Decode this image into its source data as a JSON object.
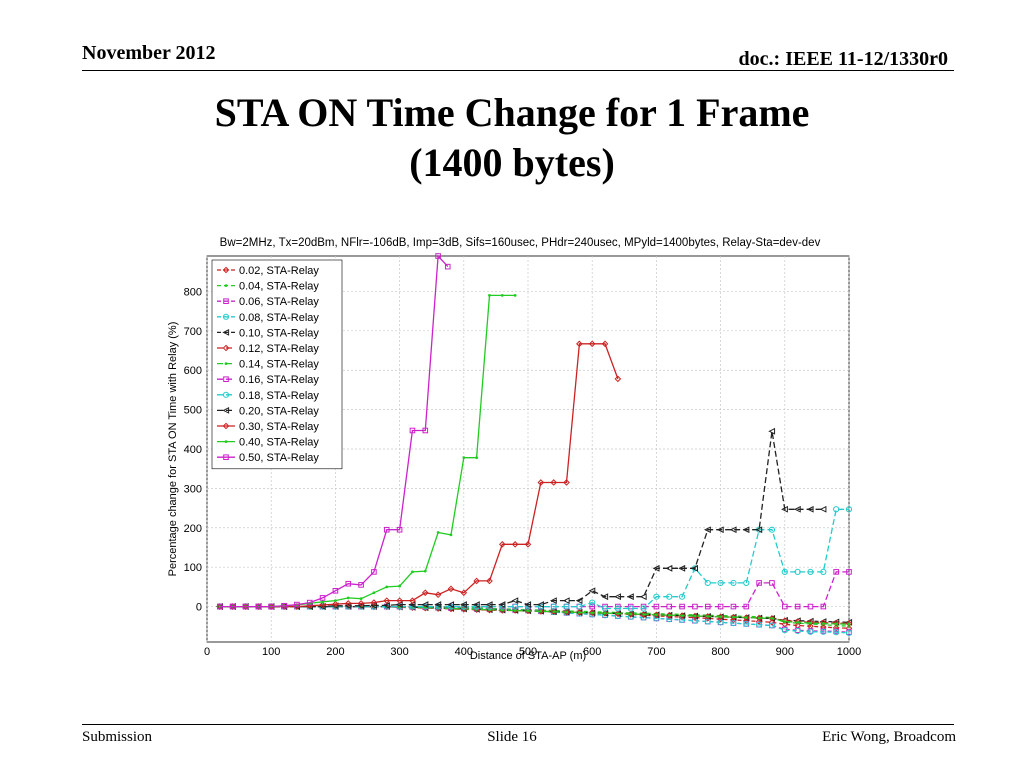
{
  "slide": {
    "date": "November 2012",
    "doc_id": "doc.: IEEE 11-12/1330r0",
    "title_line1": "STA ON Time Change for 1 Frame",
    "title_line2": "(1400 bytes)",
    "footer_left": "Submission",
    "footer_center": "Slide 16",
    "footer_right": "Eric Wong, Broadcom"
  },
  "chart_data": {
    "type": "line",
    "title": "Bw=2MHz, Tx=20dBm, NFlr=-106dB, Imp=3dB, Sifs=160usec, PHdr=240usec, MPyld=1400bytes, Relay-Sta=dev-dev",
    "xlabel": "Distance of STA-AP (m)",
    "ylabel": "Percentage change for STA ON Time with Relay (%)",
    "xlim": [
      0,
      1000
    ],
    "ylim": [
      -90,
      890
    ],
    "xticks": [
      0,
      100,
      200,
      300,
      400,
      500,
      600,
      700,
      800,
      900,
      1000
    ],
    "yticks": [
      0,
      100,
      200,
      300,
      400,
      500,
      600,
      700,
      800
    ],
    "grid": true,
    "legend_position": "top-left",
    "series": [
      {
        "name": "0.02, STA-Relay",
        "color": "#cc2222",
        "marker": "diamond",
        "dash": "4,3",
        "x": [
          20,
          40,
          60,
          80,
          100,
          120,
          140,
          160,
          180,
          200,
          220,
          240,
          260,
          280,
          300,
          320,
          340,
          360,
          380,
          400,
          420,
          440,
          460,
          480,
          500,
          520,
          540,
          560,
          580,
          600,
          620,
          640,
          660,
          680,
          700,
          720,
          740,
          760,
          780,
          800,
          820,
          840,
          860,
          880,
          900,
          920,
          940,
          960,
          980,
          1000
        ],
        "y": [
          0,
          0,
          0,
          0,
          0,
          0,
          0,
          0,
          0,
          0,
          0,
          0,
          0,
          0,
          0,
          0,
          0,
          0,
          -2,
          -3,
          -4,
          -5,
          -6,
          -8,
          -10,
          -11,
          -12,
          -13,
          -14,
          -15,
          -17,
          -18,
          -20,
          -22,
          -24,
          -25,
          -27,
          -28,
          -30,
          -32,
          -34,
          -36,
          -38,
          -40,
          -45,
          -48,
          -50,
          -52,
          -54,
          -55
        ]
      },
      {
        "name": "0.04, STA-Relay",
        "color": "#22cc22",
        "marker": "point",
        "dash": "4,3",
        "x": [
          20,
          40,
          60,
          80,
          100,
          120,
          140,
          160,
          180,
          200,
          220,
          240,
          260,
          280,
          300,
          320,
          340,
          360,
          380,
          400,
          420,
          440,
          460,
          480,
          500,
          520,
          540,
          560,
          580,
          600,
          620,
          640,
          660,
          680,
          700,
          720,
          740,
          760,
          780,
          800,
          820,
          840,
          860,
          880,
          900,
          920,
          940,
          960,
          980,
          1000
        ],
        "y": [
          0,
          0,
          0,
          0,
          0,
          0,
          0,
          0,
          0,
          0,
          0,
          0,
          0,
          0,
          0,
          0,
          0,
          -1,
          -2,
          -3,
          -4,
          -5,
          -6,
          -7,
          -8,
          -9,
          -10,
          -11,
          -12,
          -13,
          -14,
          -15,
          -16,
          -17,
          -18,
          -19,
          -20,
          -21,
          -22,
          -23,
          -24,
          -25,
          -26,
          -28,
          -40,
          -42,
          -44,
          -46,
          -48,
          -50
        ]
      },
      {
        "name": "0.06, STA-Relay",
        "color": "#cc22cc",
        "marker": "square",
        "dash": "4,3",
        "x": [
          20,
          40,
          60,
          80,
          100,
          120,
          140,
          160,
          180,
          200,
          220,
          240,
          260,
          280,
          300,
          320,
          340,
          360,
          380,
          400,
          420,
          440,
          460,
          480,
          500,
          520,
          540,
          560,
          580,
          600,
          620,
          640,
          660,
          680,
          700,
          720,
          740,
          760,
          780,
          800,
          820,
          840,
          860,
          880,
          900,
          920,
          940,
          960,
          980,
          1000
        ],
        "y": [
          0,
          0,
          0,
          0,
          0,
          0,
          0,
          0,
          0,
          0,
          0,
          0,
          0,
          0,
          0,
          -1,
          -2,
          -3,
          -4,
          -5,
          -6,
          -7,
          -8,
          -9,
          -10,
          -12,
          -14,
          -16,
          -18,
          -20,
          -22,
          -24,
          -26,
          -28,
          -30,
          -32,
          -34,
          -36,
          -38,
          -40,
          -42,
          -44,
          -46,
          -48,
          -58,
          -60,
          -62,
          -62,
          -63,
          -65
        ]
      },
      {
        "name": "0.08, STA-Relay",
        "color": "#22cccc",
        "marker": "circle",
        "dash": "4,3",
        "x": [
          20,
          40,
          60,
          80,
          100,
          120,
          140,
          160,
          180,
          200,
          220,
          240,
          260,
          280,
          300,
          320,
          340,
          360,
          380,
          400,
          420,
          440,
          460,
          480,
          500,
          520,
          540,
          560,
          580,
          600,
          620,
          640,
          660,
          680,
          700,
          720,
          740,
          760,
          780,
          800,
          820,
          840,
          860,
          880,
          900,
          920,
          940,
          960,
          980,
          1000
        ],
        "y": [
          0,
          0,
          0,
          0,
          0,
          0,
          0,
          0,
          0,
          0,
          0,
          0,
          0,
          0,
          0,
          -1,
          -2,
          -3,
          -4,
          -5,
          -6,
          -7,
          -8,
          -9,
          -10,
          -12,
          -14,
          -16,
          -18,
          -20,
          -22,
          -24,
          -26,
          -28,
          -30,
          -32,
          -34,
          -36,
          -38,
          -40,
          -42,
          -44,
          -46,
          -48,
          -60,
          -62,
          -64,
          -64,
          -65,
          -67
        ]
      },
      {
        "name": "0.10, STA-Relay",
        "color": "#222222",
        "marker": "triangle",
        "dash": "4,3",
        "x": [
          20,
          40,
          60,
          80,
          100,
          120,
          140,
          160,
          180,
          200,
          220,
          240,
          260,
          280,
          300,
          320,
          340,
          360,
          380,
          400,
          420,
          440,
          460,
          480,
          500,
          520,
          540,
          560,
          580,
          600,
          620,
          640,
          660,
          680,
          700,
          720,
          740,
          760,
          780,
          800,
          820,
          840,
          860,
          880,
          900,
          920,
          940,
          960,
          980,
          1000
        ],
        "y": [
          0,
          0,
          0,
          0,
          0,
          0,
          0,
          0,
          0,
          0,
          0,
          0,
          0,
          0,
          -1,
          -2,
          -3,
          -4,
          -5,
          -6,
          -7,
          -8,
          -9,
          -10,
          -11,
          -12,
          -13,
          -14,
          -15,
          -16,
          -17,
          -18,
          -19,
          -20,
          -21,
          -22,
          -23,
          -24,
          -25,
          -26,
          -27,
          -28,
          -29,
          -30,
          -35,
          -36,
          -37,
          -38,
          -39,
          -40
        ]
      },
      {
        "name": "0.12, STA-Relay",
        "color": "#cc2222",
        "marker": "diamond",
        "dash": "6,3",
        "x": [
          20,
          40,
          60,
          80,
          100,
          120,
          140,
          160,
          180,
          200,
          220,
          240,
          260,
          280,
          300,
          320,
          340,
          360,
          380,
          400,
          420,
          440,
          460,
          480,
          500,
          520,
          540,
          560,
          580,
          600,
          620,
          640,
          660,
          680,
          700,
          720,
          740,
          760,
          780,
          800,
          820,
          840,
          860,
          880,
          900,
          920,
          940,
          960,
          980,
          1000
        ],
        "y": [
          0,
          0,
          0,
          0,
          0,
          0,
          0,
          0,
          0,
          0,
          0,
          0,
          -1,
          -1,
          -2,
          -3,
          -4,
          -5,
          -6,
          -7,
          -8,
          -9,
          -10,
          -10,
          -11,
          -12,
          -13,
          -14,
          -15,
          -16,
          -17,
          -18,
          -19,
          -20,
          -21,
          -22,
          -23,
          -24,
          -25,
          -26,
          -27,
          -28,
          -29,
          -30,
          -36,
          -38,
          -40,
          -41,
          -42,
          -43
        ]
      },
      {
        "name": "0.14, STA-Relay",
        "color": "#22cc22",
        "marker": "point",
        "dash": "6,3",
        "x": [
          20,
          40,
          60,
          80,
          100,
          120,
          140,
          160,
          180,
          200,
          220,
          240,
          260,
          280,
          300,
          320,
          340,
          360,
          380,
          400,
          420,
          440,
          460,
          480,
          500,
          520,
          540,
          560,
          580,
          600,
          620,
          640,
          660,
          680,
          700,
          720,
          740,
          760,
          780,
          800,
          820,
          840,
          860,
          880,
          900,
          920,
          940,
          960,
          980,
          1000
        ],
        "y": [
          0,
          0,
          0,
          0,
          0,
          0,
          0,
          0,
          0,
          0,
          0,
          0,
          0,
          0,
          -1,
          -2,
          -3,
          -4,
          -5,
          -6,
          -7,
          -8,
          -9,
          -10,
          -11,
          -12,
          -13,
          -14,
          -15,
          -16,
          -17,
          -18,
          -19,
          -20,
          -21,
          -22,
          -23,
          -24,
          -25,
          -26,
          -27,
          -28,
          -29,
          -30,
          -38,
          -40,
          -42,
          -43,
          -44,
          -45
        ]
      },
      {
        "name": "0.16, STA-Relay",
        "color": "#cc22cc",
        "marker": "square",
        "dash": "6,3",
        "x": [
          20,
          40,
          60,
          80,
          100,
          120,
          140,
          160,
          180,
          200,
          220,
          240,
          260,
          280,
          300,
          320,
          340,
          360,
          380,
          400,
          420,
          440,
          460,
          480,
          500,
          520,
          540,
          560,
          580,
          600,
          620,
          640,
          660,
          680,
          700,
          720,
          740,
          760,
          780,
          800,
          820,
          840,
          860,
          880,
          900,
          920,
          940,
          960,
          980,
          1000
        ],
        "y": [
          0,
          0,
          0,
          0,
          0,
          0,
          0,
          0,
          0,
          0,
          0,
          0,
          0,
          0,
          0,
          0,
          0,
          0,
          0,
          0,
          0,
          0,
          0,
          0,
          0,
          0,
          0,
          0,
          0,
          0,
          0,
          0,
          0,
          0,
          0,
          0,
          0,
          0,
          0,
          0,
          0,
          0,
          60,
          60,
          0,
          0,
          0,
          0,
          88,
          88
        ]
      },
      {
        "name": "0.18, STA-Relay",
        "color": "#22cccc",
        "marker": "circle",
        "dash": "6,3",
        "x": [
          20,
          40,
          60,
          80,
          100,
          120,
          140,
          160,
          180,
          200,
          220,
          240,
          260,
          280,
          300,
          320,
          340,
          360,
          380,
          400,
          420,
          440,
          460,
          480,
          500,
          520,
          540,
          560,
          580,
          600,
          620,
          640,
          660,
          680,
          700,
          720,
          740,
          760,
          780,
          800,
          820,
          840,
          860,
          880,
          900,
          920,
          940,
          960,
          980,
          1000
        ],
        "y": [
          0,
          0,
          0,
          0,
          0,
          0,
          0,
          0,
          0,
          0,
          0,
          0,
          0,
          0,
          0,
          0,
          0,
          0,
          0,
          0,
          0,
          0,
          0,
          0,
          0,
          0,
          0,
          0,
          0,
          10,
          -5,
          -5,
          -5,
          -5,
          25,
          25,
          25,
          97,
          60,
          60,
          60,
          60,
          195,
          195,
          88,
          88,
          88,
          88,
          247,
          247
        ]
      },
      {
        "name": "0.20, STA-Relay",
        "color": "#222222",
        "marker": "triangle",
        "dash": "6,3",
        "x": [
          20,
          40,
          60,
          80,
          100,
          120,
          140,
          160,
          180,
          200,
          220,
          240,
          260,
          280,
          300,
          320,
          340,
          360,
          380,
          400,
          420,
          440,
          460,
          480,
          500,
          520,
          540,
          560,
          580,
          600,
          620,
          640,
          660,
          680,
          700,
          720,
          740,
          760,
          780,
          800,
          820,
          840,
          860,
          880,
          900,
          920,
          940,
          960
        ],
        "y": [
          0,
          0,
          0,
          0,
          0,
          0,
          0,
          0,
          0,
          2,
          2,
          2,
          3,
          3,
          5,
          5,
          5,
          5,
          5,
          5,
          5,
          5,
          5,
          15,
          5,
          5,
          15,
          15,
          15,
          40,
          25,
          25,
          25,
          25,
          97,
          97,
          97,
          97,
          195,
          195,
          195,
          195,
          195,
          445,
          247,
          247,
          247,
          247
        ]
      },
      {
        "name": "0.30, STA-Relay",
        "color": "#cc2222",
        "marker": "diamond",
        "dash": "",
        "x": [
          20,
          40,
          60,
          80,
          100,
          120,
          140,
          160,
          180,
          200,
          220,
          240,
          260,
          280,
          300,
          320,
          340,
          360,
          380,
          400,
          420,
          440,
          460,
          480,
          500,
          520,
          540,
          560,
          580,
          600,
          620,
          640
        ],
        "y": [
          0,
          0,
          0,
          0,
          0,
          0,
          0,
          2,
          4,
          6,
          8,
          8,
          10,
          15,
          15,
          15,
          35,
          30,
          45,
          35,
          65,
          65,
          158,
          158,
          158,
          315,
          315,
          315,
          667,
          667,
          667,
          578
        ]
      },
      {
        "name": "0.40, STA-Relay",
        "color": "#22cc22",
        "marker": "point",
        "dash": "",
        "x": [
          20,
          40,
          60,
          80,
          100,
          120,
          140,
          160,
          180,
          200,
          220,
          240,
          260,
          280,
          300,
          320,
          340,
          360,
          380,
          400,
          420,
          440,
          460,
          480
        ],
        "y": [
          0,
          0,
          0,
          0,
          0,
          2,
          4,
          8,
          12,
          15,
          22,
          20,
          35,
          50,
          52,
          88,
          90,
          188,
          182,
          378,
          378,
          790,
          790,
          790
        ]
      },
      {
        "name": "0.50, STA-Relay",
        "color": "#cc22cc",
        "marker": "square",
        "dash": "",
        "x": [
          20,
          40,
          60,
          80,
          100,
          120,
          140,
          160,
          180,
          200,
          220,
          240,
          260,
          280,
          300,
          320,
          340,
          360,
          375
        ],
        "y": [
          0,
          0,
          0,
          0,
          0,
          2,
          5,
          10,
          22,
          40,
          58,
          55,
          88,
          195,
          195,
          447,
          447,
          890,
          863
        ]
      }
    ]
  }
}
